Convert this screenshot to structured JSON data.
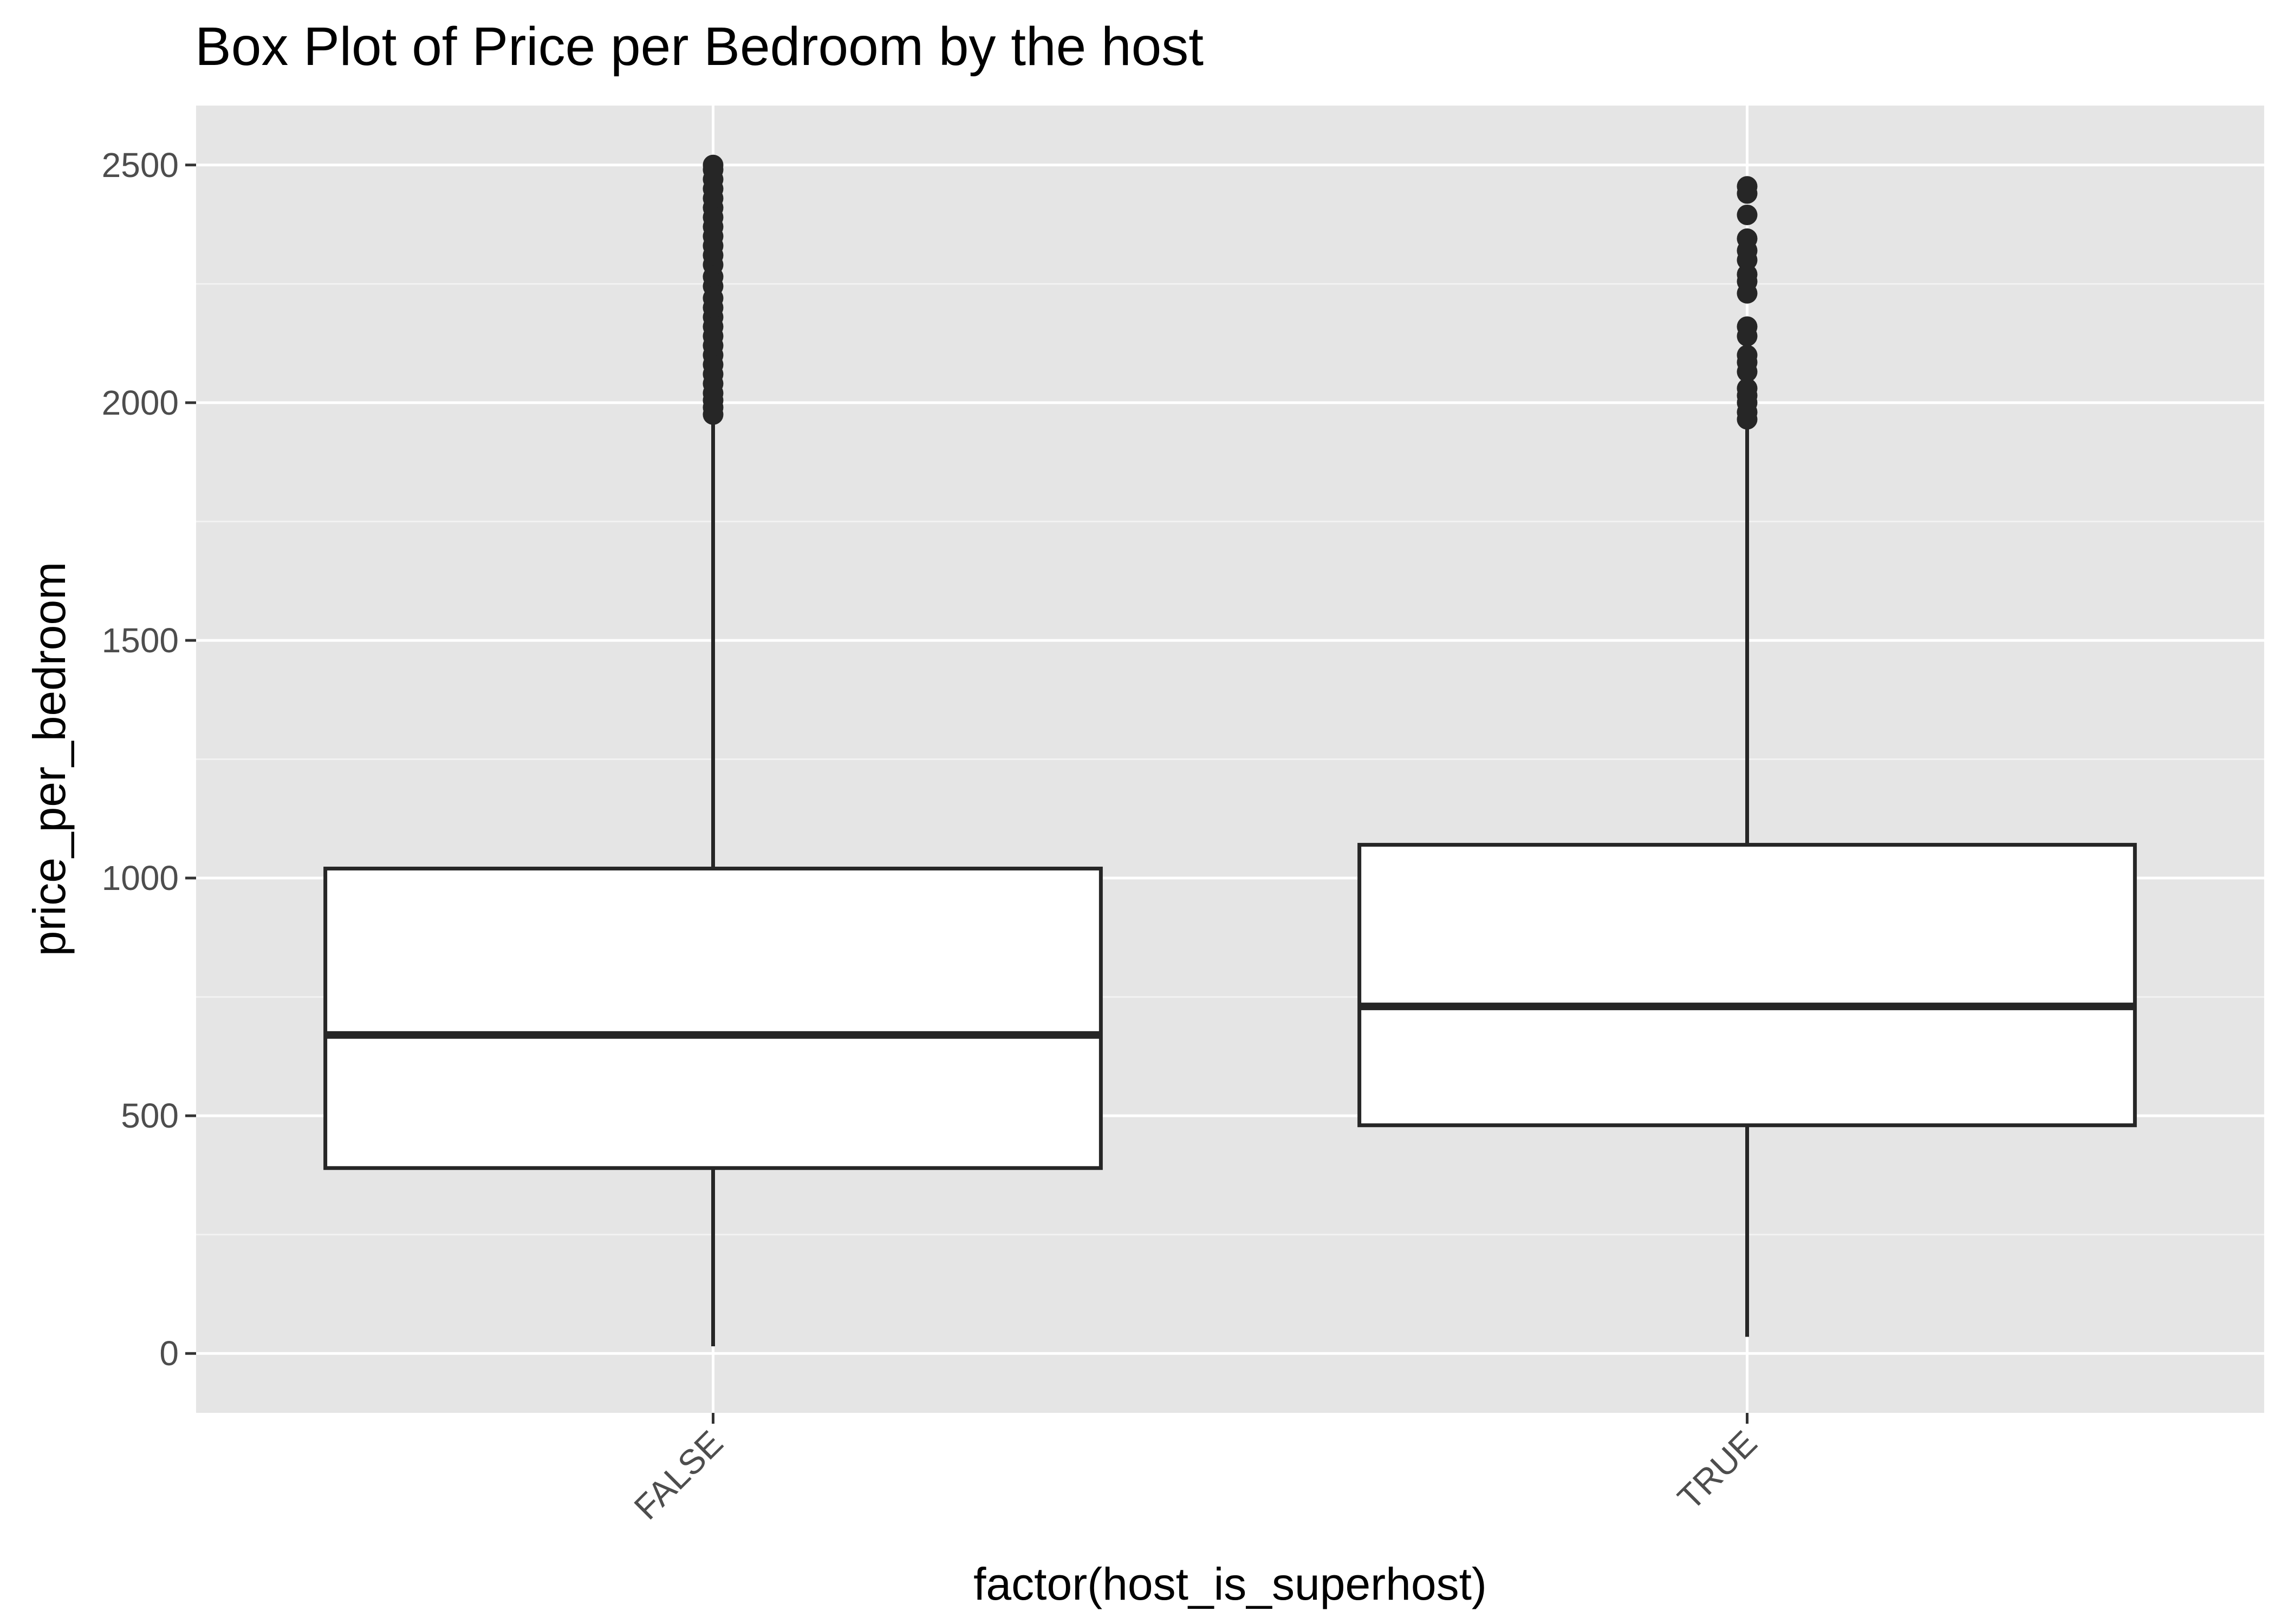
{
  "chart_data": {
    "type": "boxplot",
    "title": "Box Plot of Price per Bedroom by the host",
    "xlabel": "factor(host_is_superhost)",
    "ylabel": "price_per_bedroom",
    "ylim": [
      -125,
      2625
    ],
    "y_ticks": [
      0,
      500,
      1000,
      1500,
      2000,
      2500
    ],
    "y_tick_labels": [
      "0",
      "500",
      "1000",
      "1500",
      "2000",
      "2500"
    ],
    "grid": true,
    "categories": [
      "FALSE",
      "TRUE"
    ],
    "boxes": [
      {
        "category": "FALSE",
        "whisker_low": 15,
        "q1": 390,
        "median": 670,
        "q3": 1020,
        "whisker_high": 1960,
        "outliers": [
          1975,
          1990,
          2005,
          2020,
          2040,
          2060,
          2080,
          2100,
          2120,
          2140,
          2160,
          2180,
          2200,
          2220,
          2245,
          2265,
          2290,
          2310,
          2330,
          2350,
          2370,
          2390,
          2410,
          2430,
          2450,
          2470,
          2490,
          2500
        ]
      },
      {
        "category": "TRUE",
        "whisker_low": 35,
        "q1": 480,
        "median": 730,
        "q3": 1070,
        "whisker_high": 1950,
        "outliers": [
          1965,
          1980,
          2000,
          2015,
          2030,
          2065,
          2085,
          2100,
          2140,
          2160,
          2230,
          2255,
          2270,
          2300,
          2320,
          2345,
          2395,
          2440,
          2455
        ]
      }
    ],
    "colors": {
      "panel_background": "#e5e5e5",
      "grid_major": "#ffffff",
      "grid_minor": "#f2f2f2",
      "box_fill": "#ffffff",
      "box_line": "#262626"
    }
  }
}
